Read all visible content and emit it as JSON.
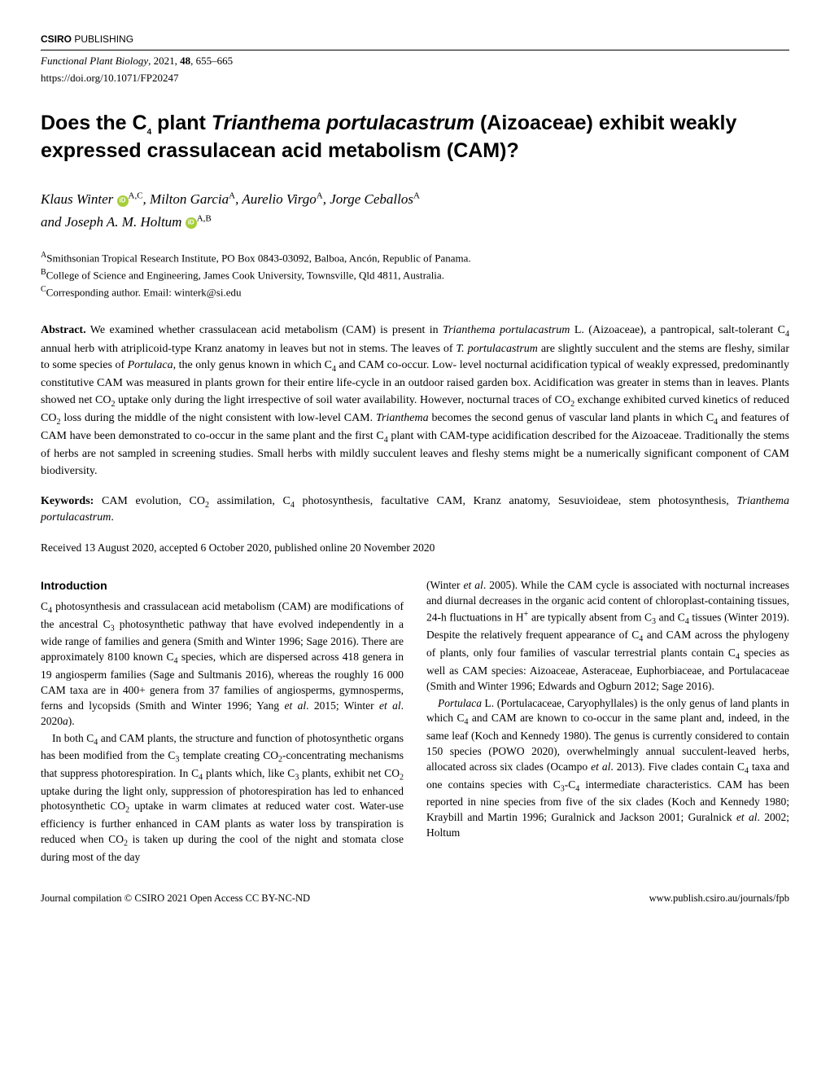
{
  "publisher_prefix": "CSIRO",
  "publisher_suffix": " PUBLISHING",
  "journal_name": "Functional Plant Biology",
  "journal_year": "2021",
  "journal_volume": "48",
  "journal_pages": "655–665",
  "doi": "https://doi.org/10.1071/FP20247",
  "title": "Does the C₄ plant Trianthema portulacastrum (Aizoaceae) exhibit weakly expressed crassulacean acid metabolism (CAM)?",
  "authors_line1": "Klaus Winter",
  "authors_sup1": "A,C",
  "authors_line1b": ", Milton Garcia",
  "authors_sup2": "A",
  "authors_line1c": ", Aurelio Virgo",
  "authors_sup3": "A",
  "authors_line1d": ", Jorge Ceballos",
  "authors_sup4": "A",
  "authors_line2": "and Joseph A. M. Holtum",
  "authors_sup5": "A,B",
  "affil_A_sup": "A",
  "affil_A": "Smithsonian Tropical Research Institute, PO Box 0843-03092, Balboa, Ancón, Republic of Panama.",
  "affil_B_sup": "B",
  "affil_B": "College of Science and Engineering, James Cook University, Townsville, Qld 4811, Australia.",
  "affil_C_sup": "C",
  "affil_C": "Corresponding author. Email: winterk@si.edu",
  "abstract_label": "Abstract.",
  "abstract_text": " We examined whether crassulacean acid metabolism (CAM) is present in Trianthema portulacastrum L. (Aizoaceae), a pantropical, salt-tolerant C₄ annual herb with atriplicoid-type Kranz anatomy in leaves but not in stems. The leaves of T. portulacastrum are slightly succulent and the stems are fleshy, similar to some species of Portulaca, the only genus known in which C₄ and CAM co-occur. Low- level nocturnal acidification typical of weakly expressed, predominantly constitutive CAM was measured in plants grown for their entire life-cycle in an outdoor raised garden box. Acidification was greater in stems than in leaves. Plants showed net CO₂ uptake only during the light irrespective of soil water availability. However, nocturnal traces of CO₂ exchange exhibited curved kinetics of reduced CO₂ loss during the middle of the night consistent with low-level CAM. Trianthema becomes the second genus of vascular land plants in which C₄ and features of CAM have been demonstrated to co-occur in the same plant and the first C₄ plant with CAM-type acidification described for the Aizoaceae. Traditionally the stems of herbs are not sampled in screening studies. Small herbs with mildly succulent leaves and fleshy stems might be a numerically significant component of CAM biodiversity.",
  "keywords_label": "Keywords:",
  "keywords_text": " CAM evolution, CO₂ assimilation, C₄ photosynthesis, facultative CAM, Kranz anatomy, Sesuvioideae, stem photosynthesis, Trianthema portulacastrum.",
  "dates_text": "Received 13 August 2020, accepted 6 October 2020, published online 20 November 2020",
  "section_heading": "Introduction",
  "col1_p1": "C₄ photosynthesis and crassulacean acid metabolism (CAM) are modifications of the ancestral C₃ photosynthetic pathway that have evolved independently in a wide range of families and genera (Smith and Winter 1996; Sage 2016). There are approximately 8100 known C₄ species, which are dispersed across 418 genera in 19 angiosperm families (Sage and Sultmanis 2016), whereas the roughly 16 000 CAM taxa are in 400+ genera from 37 families of angiosperms, gymnosperms, ferns and lycopsids (Smith and Winter 1996; Yang et al. 2015; Winter et al. 2020a).",
  "col1_p2": "In both C₄ and CAM plants, the structure and function of photosynthetic organs has been modified from the C₃ template creating CO₂-concentrating mechanisms that suppress photorespiration. In C₄ plants which, like C₃ plants, exhibit net CO₂ uptake during the light only, suppression of photorespiration has led to enhanced photosynthetic CO₂ uptake in warm climates at reduced water cost. Water-use efficiency is further enhanced in CAM plants as water loss by transpiration is reduced when CO₂ is taken up during the cool of the night and stomata close during most of the day",
  "col2_p1": "(Winter et al. 2005). While the CAM cycle is associated with nocturnal increases and diurnal decreases in the organic acid content of chloroplast-containing tissues, 24-h fluctuations in H⁺ are typically absent from C₃ and C₄ tissues (Winter 2019). Despite the relatively frequent appearance of C₄ and CAM across the phylogeny of plants, only four families of vascular terrestrial plants contain C₄ species as well as CAM species: Aizoaceae, Asteraceae, Euphorbiaceae, and Portulacaceae (Smith and Winter 1996; Edwards and Ogburn 2012; Sage 2016).",
  "col2_p2": "Portulaca L. (Portulacaceae, Caryophyllales) is the only genus of land plants in which C₄ and CAM are known to co-occur in the same plant and, indeed, in the same leaf (Koch and Kennedy 1980). The genus is currently considered to contain 150 species (POWO 2020), overwhelmingly annual succulent-leaved herbs, allocated across six clades (Ocampo et al. 2013). Five clades contain C₄ taxa and one contains species with C₃-C₄ intermediate characteristics. CAM has been reported in nine species from five of the six clades (Koch and Kennedy 1980; Kraybill and Martin 1996; Guralnick and Jackson 2001; Guralnick et al. 2002; Holtum",
  "footer_left": "Journal compilation © CSIRO 2021 Open Access CC BY-NC-ND",
  "footer_right": "www.publish.csiro.au/journals/fpb"
}
